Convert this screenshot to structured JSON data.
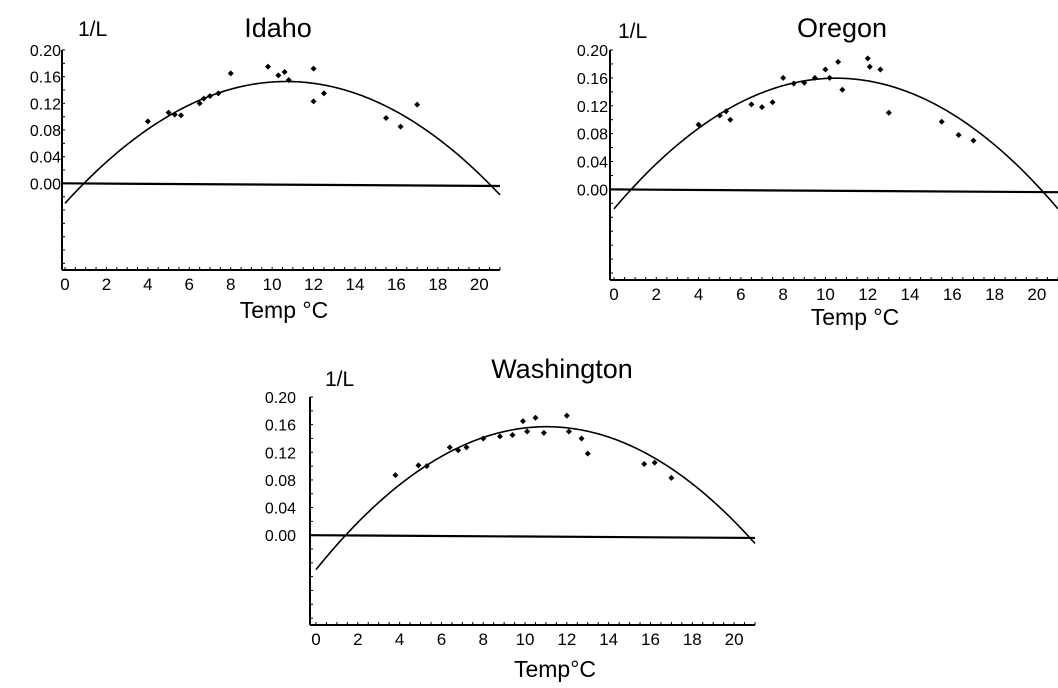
{
  "chart_data": [
    {
      "type": "scatter",
      "title": "Idaho",
      "ylabel": "1/L",
      "xlabel": "Temp °C",
      "x_ticks": [
        "0",
        "2",
        "4",
        "6",
        "8",
        "10",
        "12",
        "14",
        "16",
        "18",
        "20"
      ],
      "y_ticks": [
        "0.20",
        "0.16",
        "0.12",
        "0.08",
        "0.04",
        "0.00"
      ],
      "xlim": [
        0,
        21
      ],
      "ylim": [
        -0.13,
        0.2
      ],
      "grid": false,
      "points": [
        {
          "x": 4.0,
          "y": 0.093
        },
        {
          "x": 5.0,
          "y": 0.106
        },
        {
          "x": 5.3,
          "y": 0.103
        },
        {
          "x": 5.6,
          "y": 0.102
        },
        {
          "x": 6.5,
          "y": 0.12
        },
        {
          "x": 6.7,
          "y": 0.127
        },
        {
          "x": 7.0,
          "y": 0.131
        },
        {
          "x": 7.4,
          "y": 0.135
        },
        {
          "x": 8.0,
          "y": 0.165
        },
        {
          "x": 9.8,
          "y": 0.175
        },
        {
          "x": 10.3,
          "y": 0.162
        },
        {
          "x": 10.6,
          "y": 0.167
        },
        {
          "x": 10.8,
          "y": 0.155
        },
        {
          "x": 12.0,
          "y": 0.172
        },
        {
          "x": 12.0,
          "y": 0.123
        },
        {
          "x": 12.5,
          "y": 0.135
        },
        {
          "x": 15.5,
          "y": 0.098
        },
        {
          "x": 16.2,
          "y": 0.085
        },
        {
          "x": 17.0,
          "y": 0.118
        }
      ],
      "fit": {
        "type": "quadratic",
        "a": -0.0016,
        "b": 0.0342,
        "c": -0.03
      },
      "baseline": {
        "y_start": 0.0,
        "y_end": -0.004
      }
    },
    {
      "type": "scatter",
      "title": "Oregon",
      "ylabel": "1/L",
      "xlabel": "Temp °C",
      "x_ticks": [
        "0",
        "2",
        "4",
        "6",
        "8",
        "10",
        "12",
        "14",
        "16",
        "18",
        "20"
      ],
      "y_ticks": [
        "0.20",
        "0.16",
        "0.12",
        "0.08",
        "0.04",
        "0.00"
      ],
      "xlim": [
        0,
        21
      ],
      "ylim": [
        -0.13,
        0.2
      ],
      "grid": false,
      "points": [
        {
          "x": 4.0,
          "y": 0.093
        },
        {
          "x": 5.0,
          "y": 0.106
        },
        {
          "x": 5.3,
          "y": 0.112
        },
        {
          "x": 5.5,
          "y": 0.1
        },
        {
          "x": 6.5,
          "y": 0.122
        },
        {
          "x": 7.0,
          "y": 0.118
        },
        {
          "x": 7.5,
          "y": 0.125
        },
        {
          "x": 8.0,
          "y": 0.16
        },
        {
          "x": 8.5,
          "y": 0.152
        },
        {
          "x": 9.0,
          "y": 0.153
        },
        {
          "x": 9.5,
          "y": 0.16
        },
        {
          "x": 10.0,
          "y": 0.172
        },
        {
          "x": 10.2,
          "y": 0.16
        },
        {
          "x": 10.6,
          "y": 0.183
        },
        {
          "x": 10.8,
          "y": 0.143
        },
        {
          "x": 12.0,
          "y": 0.188
        },
        {
          "x": 12.1,
          "y": 0.176
        },
        {
          "x": 12.6,
          "y": 0.172
        },
        {
          "x": 13.0,
          "y": 0.11
        },
        {
          "x": 15.5,
          "y": 0.097
        },
        {
          "x": 16.3,
          "y": 0.078
        },
        {
          "x": 17.0,
          "y": 0.07
        }
      ],
      "fit": {
        "type": "quadratic",
        "a": -0.0017,
        "b": 0.0357,
        "c": -0.0279
      },
      "baseline": {
        "y_start": 0.0,
        "y_end": -0.004
      }
    },
    {
      "type": "scatter",
      "title": "Washington",
      "ylabel": "1/L",
      "xlabel": "Temp°C",
      "x_ticks": [
        "0",
        "2",
        "4",
        "6",
        "8",
        "10",
        "12",
        "14",
        "16",
        "18",
        "20"
      ],
      "y_ticks": [
        "0.20",
        "0.16",
        "0.12",
        "0.08",
        "0.04",
        "0.00"
      ],
      "xlim": [
        0,
        21
      ],
      "ylim": [
        -0.13,
        0.2
      ],
      "grid": false,
      "points": [
        {
          "x": 3.8,
          "y": 0.087
        },
        {
          "x": 4.9,
          "y": 0.101
        },
        {
          "x": 5.3,
          "y": 0.1
        },
        {
          "x": 6.4,
          "y": 0.127
        },
        {
          "x": 6.8,
          "y": 0.123
        },
        {
          "x": 7.2,
          "y": 0.127
        },
        {
          "x": 8.0,
          "y": 0.14
        },
        {
          "x": 8.8,
          "y": 0.143
        },
        {
          "x": 9.4,
          "y": 0.145
        },
        {
          "x": 9.9,
          "y": 0.165
        },
        {
          "x": 10.1,
          "y": 0.15
        },
        {
          "x": 10.5,
          "y": 0.17
        },
        {
          "x": 10.9,
          "y": 0.148
        },
        {
          "x": 12.0,
          "y": 0.173
        },
        {
          "x": 12.1,
          "y": 0.15
        },
        {
          "x": 12.7,
          "y": 0.14
        },
        {
          "x": 13.0,
          "y": 0.118
        },
        {
          "x": 15.7,
          "y": 0.103
        },
        {
          "x": 16.2,
          "y": 0.105
        },
        {
          "x": 17.0,
          "y": 0.083
        }
      ],
      "fit": {
        "type": "quadratic",
        "a": -0.0017,
        "b": 0.0375,
        "c": -0.0498
      },
      "baseline": {
        "y_start": 0.0,
        "y_end": -0.004
      }
    }
  ]
}
